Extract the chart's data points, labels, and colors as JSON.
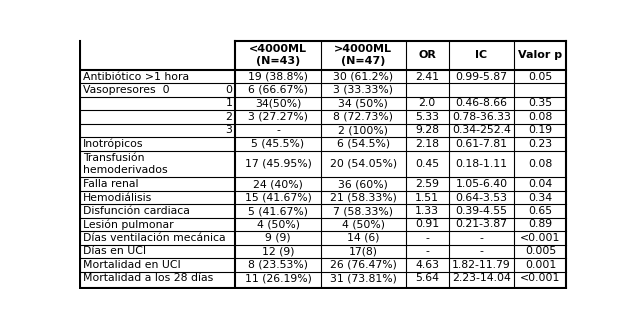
{
  "col_headers": [
    "<4000ML\n(N=43)",
    ">4000ML\n(N=47)",
    "OR",
    "IC",
    "Valor p"
  ],
  "rows": [
    {
      "label": "Antibiótico >1 hora",
      "sub_label": "",
      "values": [
        "19 (38.8%)",
        "30 (61.2%)",
        "2.41",
        "0.99-5.87",
        "0.05"
      ],
      "extra_lines": 0
    },
    {
      "label": "Vasopresores  0",
      "sub_label": "0",
      "values": [
        "6 (66.67%)",
        "3 (33.33%)",
        "",
        "",
        ""
      ],
      "extra_lines": 0
    },
    {
      "label": "",
      "sub_label": "1",
      "values": [
        "34(50%)",
        "34 (50%)",
        "2.0",
        "0.46-8.66",
        "0.35"
      ],
      "extra_lines": 0
    },
    {
      "label": "",
      "sub_label": "2",
      "values": [
        "3 (27.27%)",
        "8 (72.73%)",
        "5.33",
        "0.78-36.33",
        "0.08"
      ],
      "extra_lines": 0
    },
    {
      "label": "",
      "sub_label": "3",
      "values": [
        "-",
        "2 (100%)",
        "9.28",
        "0.34-252.4",
        "0.19"
      ],
      "extra_lines": 0
    },
    {
      "label": "Inotrópicos",
      "sub_label": "",
      "values": [
        "5 (45.5%)",
        "6 (54.5%)",
        "2.18",
        "0.61-7.81",
        "0.23"
      ],
      "extra_lines": 0
    },
    {
      "label": "Transfusión\nhemoderivados",
      "sub_label": "",
      "values": [
        "17 (45.95%)",
        "20 (54.05%)",
        "0.45",
        "0.18-1.11",
        "0.08"
      ],
      "extra_lines": 1
    },
    {
      "label": "Falla renal",
      "sub_label": "",
      "values": [
        "24 (40%)",
        "36 (60%)",
        "2.59",
        "1.05-6.40",
        "0.04"
      ],
      "extra_lines": 0
    },
    {
      "label": "Hemodiálisis",
      "sub_label": "",
      "values": [
        "15 (41.67%)",
        "21 (58.33%)",
        "1.51",
        "0.64-3.53",
        "0.34"
      ],
      "extra_lines": 0
    },
    {
      "label": "Disfunción cardiaca",
      "sub_label": "",
      "values": [
        "5 (41.67%)",
        "7 (58.33%)",
        "1.33",
        "0.39-4.55",
        "0.65"
      ],
      "extra_lines": 0
    },
    {
      "label": "Lesión pulmonar",
      "sub_label": "",
      "values": [
        "4 (50%)",
        "4 (50%)",
        "0.91",
        "0.21-3.87",
        "0.89"
      ],
      "extra_lines": 0
    },
    {
      "label": "Días ventilación mecánica",
      "sub_label": "",
      "values": [
        "9 (9)",
        "14 (6)",
        "-",
        "-",
        "<0.001"
      ],
      "extra_lines": 0
    },
    {
      "label": "Días en UCI",
      "sub_label": "",
      "values": [
        "12 (9)",
        "17(8)",
        "-",
        "-",
        "0.005"
      ],
      "extra_lines": 0
    },
    {
      "label": "Mortalidad en UCI",
      "sub_label": "",
      "values": [
        "8 (23.53%)",
        "26 (76.47%)",
        "4.63",
        "1.82-11.79",
        "0.001"
      ],
      "extra_lines": 0
    },
    {
      "label": "Mortalidad a los 28 días",
      "sub_label": "",
      "values": [
        "11 (26.19%)",
        "31 (73.81%)",
        "5.64",
        "2.23-14.04",
        "<0.001"
      ],
      "extra_lines": 0
    }
  ],
  "font_size": 7.8,
  "header_font_size": 8.0,
  "text_color": "#000000"
}
